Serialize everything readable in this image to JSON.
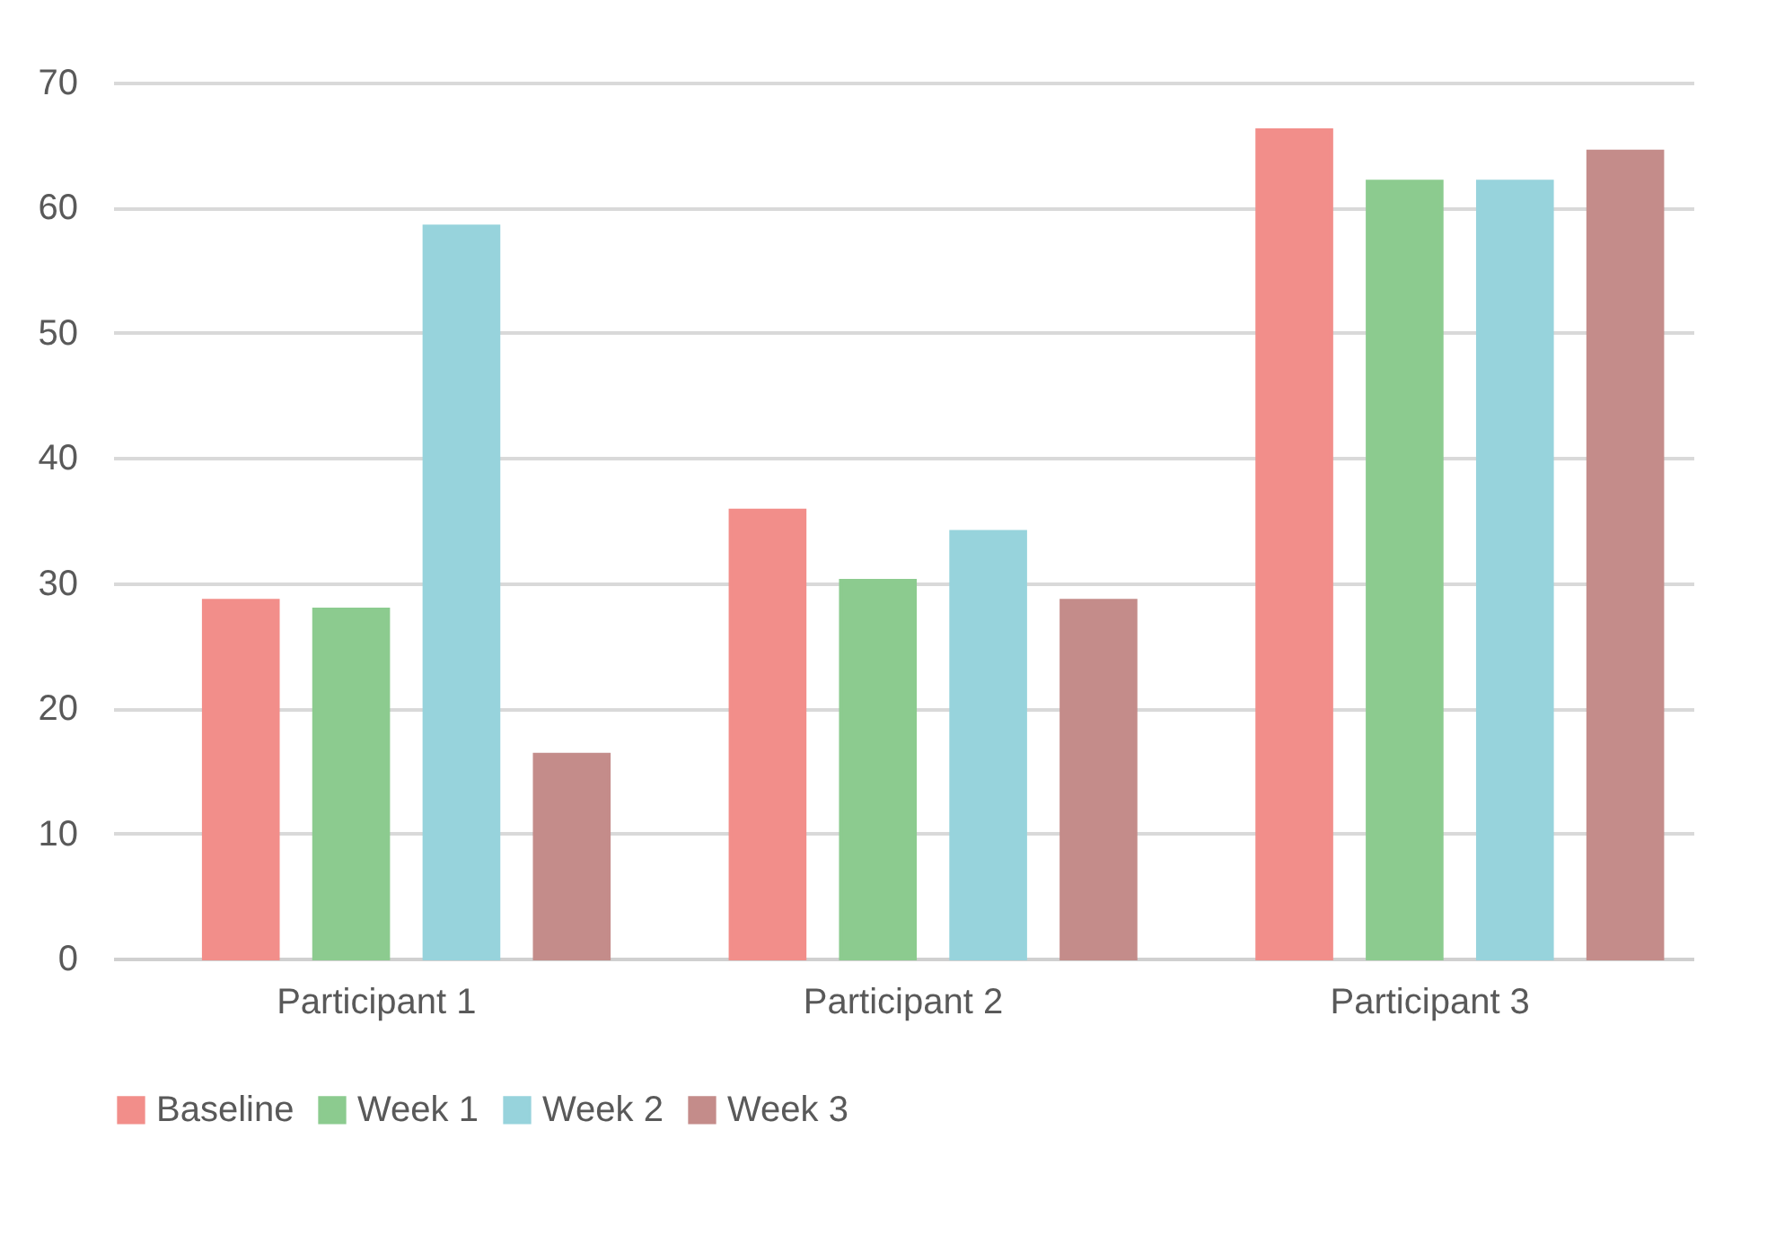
{
  "chart_data": {
    "type": "bar",
    "categories": [
      "Participant 1",
      "Participant 2",
      "Participant 3"
    ],
    "series": [
      {
        "name": "Baseline",
        "color": "#f28e8a",
        "values": [
          28.6,
          35.8,
          66.2
        ]
      },
      {
        "name": "Week 1",
        "color": "#8ccb8f",
        "values": [
          27.9,
          30.2,
          62.1
        ]
      },
      {
        "name": "Week 2",
        "color": "#97d3dc",
        "values": [
          58.5,
          34.1,
          62.1
        ]
      },
      {
        "name": "Week 3",
        "color": "#c48c8a",
        "values": [
          16.3,
          28.6,
          64.5
        ]
      }
    ],
    "ylim": [
      0,
      70
    ],
    "yticks": [
      0,
      10,
      20,
      30,
      40,
      50,
      60,
      70
    ],
    "grid": "y",
    "legend": "bottom"
  }
}
